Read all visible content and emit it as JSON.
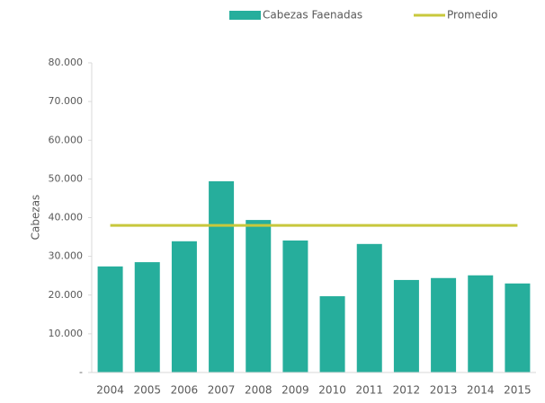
{
  "chart_data": {
    "type": "bar",
    "y_label": "Cabezas",
    "categories": [
      "2004",
      "2005",
      "2006",
      "2007",
      "2008",
      "2009",
      "2010",
      "2011",
      "2012",
      "2013",
      "2014",
      "2015"
    ],
    "series": [
      {
        "name": "Cabezas Faenadas",
        "type": "bar",
        "color": "#26ae9c",
        "values": [
          27400,
          28500,
          33900,
          49400,
          39400,
          34100,
          19700,
          33200,
          23900,
          24400,
          25100,
          23000
        ]
      },
      {
        "name": "Promedio",
        "type": "line",
        "color": "#c8c83c",
        "values": [
          38000,
          38000,
          38000,
          38000,
          38000,
          38000,
          38000,
          38000,
          38000,
          38000,
          38000,
          38000
        ]
      }
    ],
    "ylim": [
      0,
      80000
    ],
    "yticks": [
      {
        "value": 0,
        "label": "-"
      },
      {
        "value": 10000,
        "label": "10.000"
      },
      {
        "value": 20000,
        "label": "20.000"
      },
      {
        "value": 30000,
        "label": "30.000"
      },
      {
        "value": 40000,
        "label": "40.000"
      },
      {
        "value": 50000,
        "label": "50.000"
      },
      {
        "value": 60000,
        "label": "60.000"
      },
      {
        "value": 70000,
        "label": "70.000"
      },
      {
        "value": 80000,
        "label": "80.000"
      }
    ],
    "legend": "top"
  }
}
